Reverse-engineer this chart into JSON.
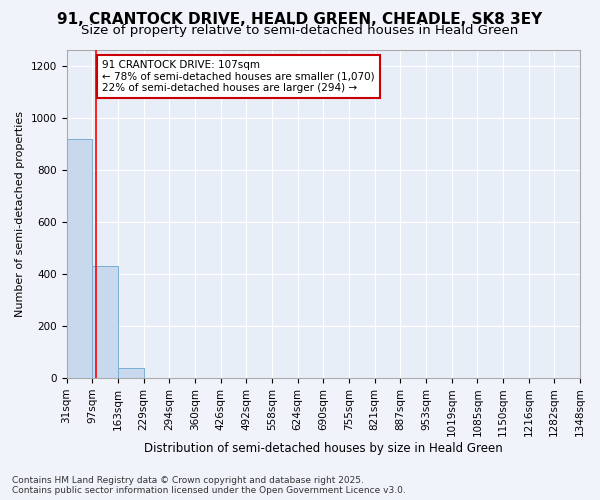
{
  "title": "91, CRANTOCK DRIVE, HEALD GREEN, CHEADLE, SK8 3EY",
  "subtitle": "Size of property relative to semi-detached houses in Heald Green",
  "xlabel": "Distribution of semi-detached houses by size in Heald Green",
  "ylabel": "Number of semi-detached properties",
  "bin_edges": [
    31,
    97,
    163,
    229,
    294,
    360,
    426,
    492,
    558,
    624,
    690,
    755,
    821,
    887,
    953,
    1019,
    1085,
    1150,
    1216,
    1282,
    1348
  ],
  "bin_heights": [
    920,
    430,
    38,
    0,
    0,
    0,
    0,
    0,
    0,
    0,
    0,
    0,
    0,
    0,
    0,
    0,
    0,
    0,
    0,
    0
  ],
  "bar_color": "#c8d9ee",
  "bar_edge_color": "#7aadd4",
  "red_line_x": 107,
  "annotation_text": "91 CRANTOCK DRIVE: 107sqm\n← 78% of semi-detached houses are smaller (1,070)\n22% of semi-detached houses are larger (294) →",
  "annotation_box_color": "#ffffff",
  "annotation_box_edge": "#cc0000",
  "ylim": [
    0,
    1260
  ],
  "yticks": [
    0,
    200,
    400,
    600,
    800,
    1000,
    1200
  ],
  "title_fontsize": 11,
  "subtitle_fontsize": 9.5,
  "xlabel_fontsize": 8.5,
  "ylabel_fontsize": 8,
  "tick_fontsize": 7.5,
  "annotation_fontsize": 7.5,
  "footer": "Contains HM Land Registry data © Crown copyright and database right 2025.\nContains public sector information licensed under the Open Government Licence v3.0.",
  "background_color": "#f0f4fa",
  "plot_bg_color": "#e8eef8",
  "grid_color": "#ffffff",
  "footer_fontsize": 6.5
}
